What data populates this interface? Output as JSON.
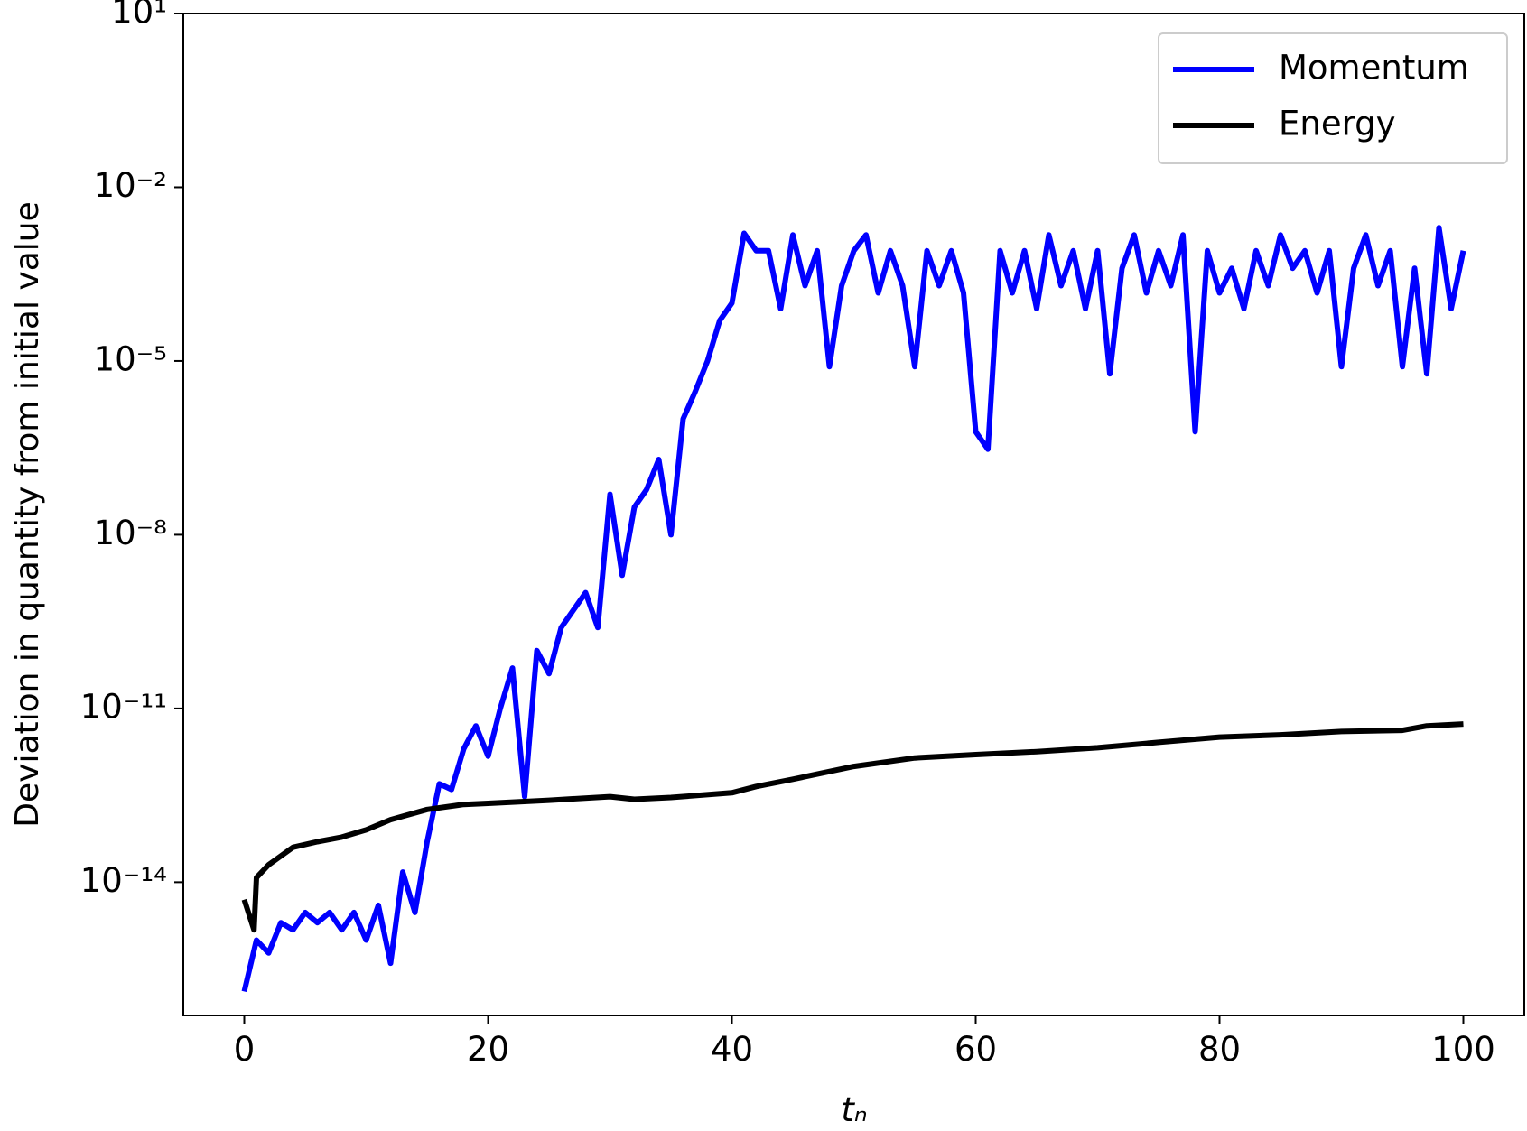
{
  "chart_data": {
    "type": "line",
    "xlabel": "tₙ",
    "ylabel": "Deviation in quantity from initial value",
    "yscale": "log",
    "xlim": [
      -5,
      105
    ],
    "ylim": [
      5e-17,
      10
    ],
    "xticks": [
      0,
      20,
      40,
      60,
      80,
      100
    ],
    "yticks": [
      {
        "value": 10,
        "label": "10¹"
      },
      {
        "value": 0.01,
        "label": "10⁻²"
      },
      {
        "value": 1e-05,
        "label": "10⁻⁵"
      },
      {
        "value": 1e-08,
        "label": "10⁻⁸"
      },
      {
        "value": 1e-11,
        "label": "10⁻¹¹"
      },
      {
        "value": 1e-14,
        "label": "10⁻¹⁴"
      }
    ],
    "legend": "upper right",
    "series": [
      {
        "name": "Momentum",
        "color": "#0000ff",
        "x": [
          0,
          1,
          2,
          3,
          4,
          5,
          6,
          7,
          8,
          9,
          10,
          11,
          12,
          13,
          14,
          15,
          16,
          17,
          18,
          19,
          20,
          21,
          22,
          23,
          24,
          25,
          26,
          27,
          28,
          29,
          30,
          31,
          32,
          33,
          34,
          35,
          36,
          37,
          38,
          39,
          40,
          41,
          42,
          43,
          44,
          45,
          46,
          47,
          48,
          49,
          50,
          51,
          52,
          53,
          54,
          55,
          56,
          57,
          58,
          59,
          60,
          61,
          62,
          63,
          64,
          65,
          66,
          67,
          68,
          69,
          70,
          71,
          72,
          73,
          74,
          75,
          76,
          77,
          78,
          79,
          80,
          81,
          82,
          83,
          84,
          85,
          86,
          87,
          88,
          89,
          90,
          91,
          92,
          93,
          94,
          95,
          96,
          97,
          98,
          99,
          100
        ],
        "values": [
          1.3e-16,
          1e-15,
          6e-16,
          2e-15,
          1.5e-15,
          3e-15,
          2e-15,
          3e-15,
          1.5e-15,
          3e-15,
          1e-15,
          4e-15,
          4e-16,
          1.5e-14,
          3e-15,
          5e-14,
          5e-13,
          4e-13,
          2e-12,
          5e-12,
          1.5e-12,
          1e-11,
          5e-11,
          3e-13,
          1e-10,
          4e-11,
          2.5e-10,
          5e-10,
          1e-09,
          2.5e-10,
          5e-08,
          2e-09,
          3e-08,
          6e-08,
          2e-07,
          1e-08,
          1e-06,
          3e-06,
          1e-05,
          5e-05,
          0.0001,
          0.0016,
          0.0008,
          0.0008,
          8e-05,
          0.0015,
          0.0002,
          0.0008,
          8e-06,
          0.0002,
          0.0008,
          0.0015,
          0.00015,
          0.0008,
          0.0002,
          8e-06,
          0.0008,
          0.0002,
          0.0008,
          0.00015,
          6e-07,
          3e-07,
          0.0008,
          0.00015,
          0.0008,
          8e-05,
          0.0015,
          0.0002,
          0.0008,
          8e-05,
          0.0008,
          6e-06,
          0.0004,
          0.0015,
          0.00015,
          0.0008,
          0.0002,
          0.0015,
          6e-07,
          0.0008,
          0.00015,
          0.0004,
          8e-05,
          0.0008,
          0.0002,
          0.0015,
          0.0004,
          0.0008,
          0.00015,
          0.0008,
          8e-06,
          0.0004,
          0.0015,
          0.0002,
          0.0008,
          8e-06,
          0.0004,
          6e-06,
          0.002,
          8e-05,
          0.0008
        ]
      },
      {
        "name": "Energy",
        "color": "#000000",
        "x": [
          0,
          0.8,
          1,
          2,
          4,
          6,
          8,
          10,
          12,
          15,
          18,
          20,
          25,
          30,
          32,
          35,
          40,
          42,
          45,
          50,
          55,
          60,
          65,
          70,
          75,
          80,
          85,
          90,
          95,
          97,
          100
        ],
        "values": [
          5e-15,
          1.5e-15,
          1.2e-14,
          2e-14,
          4e-14,
          5e-14,
          6e-14,
          8e-14,
          1.2e-13,
          1.8e-13,
          2.2e-13,
          2.3e-13,
          2.6e-13,
          3e-13,
          2.7e-13,
          2.9e-13,
          3.5e-13,
          4.5e-13,
          6e-13,
          1e-12,
          1.4e-12,
          1.6e-12,
          1.8e-12,
          2.1e-12,
          2.6e-12,
          3.2e-12,
          3.5e-12,
          4e-12,
          4.2e-12,
          5e-12,
          5.4e-12
        ]
      }
    ]
  }
}
